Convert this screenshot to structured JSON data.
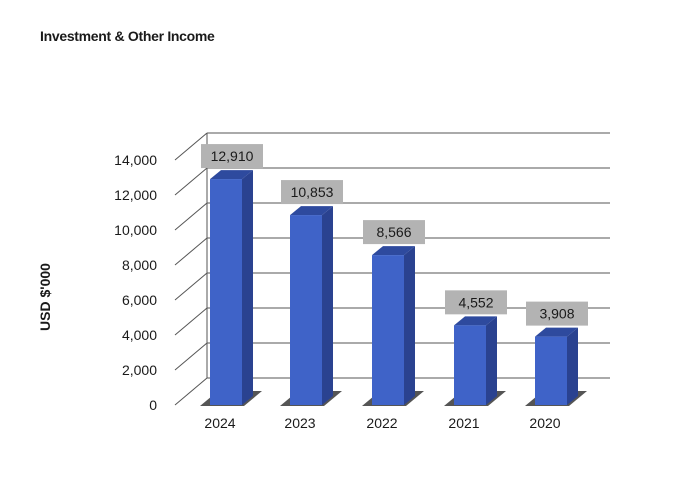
{
  "chart_data": {
    "type": "bar",
    "title": "Investment & Other Income",
    "xlabel": "",
    "ylabel": "USD $'000",
    "categories": [
      "2024",
      "2023",
      "2022",
      "2021",
      "2020"
    ],
    "values": [
      12910,
      10853,
      8566,
      4552,
      3908
    ],
    "data_labels": [
      "12,910",
      "10,853",
      "8,566",
      "4,552",
      "3,908"
    ],
    "ylim": [
      0,
      14000
    ],
    "yticks": [
      0,
      2000,
      4000,
      6000,
      8000,
      10000,
      12000,
      14000
    ],
    "ytick_labels": [
      "0",
      "2,000",
      "4,000",
      "6,000",
      "8,000",
      "10,000",
      "12,000",
      "14,000"
    ],
    "grid": true,
    "style": "3d",
    "colors": {
      "bar_front": "#3f63c8",
      "bar_side": "#2a4290",
      "bar_top": "#2e4a9e",
      "floor": "#555555",
      "grid": "#555555",
      "label_box": "#b3b3b3"
    }
  }
}
